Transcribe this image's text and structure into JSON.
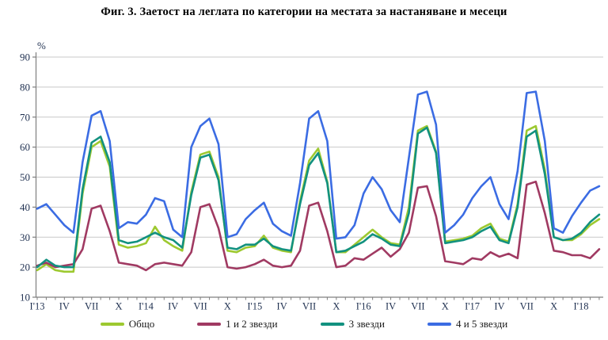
{
  "title": "Фиг. 3. Заетост на леглата по категории на местата за настаняване и месеци",
  "chart_data": {
    "type": "line",
    "title": "Фиг. 3. Заетост на леглата по категории на местата за настаняване и месеци",
    "unit_label": "%",
    "ylim": [
      10,
      90
    ],
    "yticks": [
      90,
      80,
      70,
      60,
      50,
      40,
      30,
      20,
      10
    ],
    "grid": true,
    "legend_position": "bottom",
    "x_description": "Monthly data, January 2013 - March 2018",
    "xtick_labels": [
      "I'13",
      "IV",
      "VII",
      "X",
      "I'14",
      "IV",
      "VII",
      "X",
      "I'15",
      "IV",
      "VII",
      "X",
      "I'16",
      "IV",
      "VII",
      "X",
      "I'17",
      "IV",
      "VII",
      "X",
      "I'18"
    ],
    "xtick_label_every": 3,
    "months_per_point": 1,
    "series": [
      {
        "name": "Общо",
        "color": "#9DC930",
        "values": [
          19,
          21,
          19,
          18.5,
          18.5,
          44.5,
          60,
          62,
          53.5,
          27.5,
          26.5,
          27,
          28,
          33.5,
          29,
          27,
          25.5,
          45,
          57.5,
          58.5,
          50,
          25.5,
          25,
          26.5,
          27,
          30.5,
          26.5,
          25.5,
          25,
          42,
          55.5,
          59.5,
          48.5,
          25,
          25,
          27.5,
          30,
          32.5,
          30,
          28,
          27.5,
          40,
          65.5,
          67,
          58.5,
          28.5,
          29,
          29.5,
          30.5,
          33,
          34.5,
          29.5,
          28.5,
          41,
          65.5,
          67,
          52.5,
          30,
          29,
          29,
          31,
          34,
          36
        ]
      },
      {
        "name": "1 и 2 звезди",
        "color": "#A03A62",
        "values": [
          20.5,
          21.5,
          20,
          20.5,
          21,
          26,
          39.5,
          40.5,
          32,
          21.5,
          21,
          20.5,
          19,
          21,
          21.5,
          21,
          20.5,
          25,
          40,
          41,
          33,
          20,
          19.5,
          20,
          21,
          22.5,
          20.5,
          20,
          20.5,
          25.5,
          40.5,
          41.5,
          32,
          20,
          20.5,
          23,
          22.5,
          24.5,
          26.5,
          23.5,
          26,
          31.5,
          46.5,
          47,
          37,
          22,
          21.5,
          21,
          23,
          22.5,
          25,
          23.5,
          24.5,
          23,
          47.5,
          48.5,
          38,
          25.5,
          25,
          24,
          24,
          23,
          26
        ]
      },
      {
        "name": "3 звезди",
        "color": "#12917F",
        "values": [
          20,
          22.5,
          20.5,
          20,
          20,
          46,
          61.5,
          63.5,
          55,
          29,
          28,
          28.5,
          30,
          31.5,
          30,
          29,
          26.5,
          44,
          56.5,
          57.5,
          49,
          26.5,
          26,
          27.5,
          27.5,
          29.5,
          27,
          26,
          25.5,
          41,
          54,
          58,
          48,
          25,
          25.5,
          27,
          28.5,
          31,
          29.5,
          27.5,
          27,
          38,
          64.5,
          66.5,
          58,
          28,
          28.5,
          29,
          30,
          32,
          33.5,
          29,
          28,
          40,
          63.5,
          65.5,
          51,
          30,
          29,
          29.5,
          31.5,
          35,
          37.5
        ]
      },
      {
        "name": "4 и 5 звезди",
        "color": "#3B6CE3",
        "values": [
          39.5,
          41,
          37.5,
          34,
          31.5,
          55,
          70.5,
          72,
          62,
          33,
          35,
          34.5,
          37.5,
          43,
          42,
          32.5,
          30,
          60,
          67,
          69.5,
          61,
          30,
          31,
          36,
          39,
          41.5,
          34.5,
          32,
          30.5,
          48,
          69.5,
          72,
          62,
          29.5,
          30,
          34,
          44.5,
          50,
          46,
          39,
          35,
          56.5,
          77.5,
          78.5,
          67.5,
          31.5,
          34,
          37.5,
          43,
          47,
          50,
          41,
          36,
          52,
          78,
          78.5,
          62,
          33,
          31.5,
          37,
          41.5,
          45.5,
          47
        ]
      }
    ]
  },
  "colors": {
    "grid": "#C8C8C8",
    "axis": "#7F7F7F",
    "tick_text": "#1F3050",
    "title_text": "#000000"
  }
}
